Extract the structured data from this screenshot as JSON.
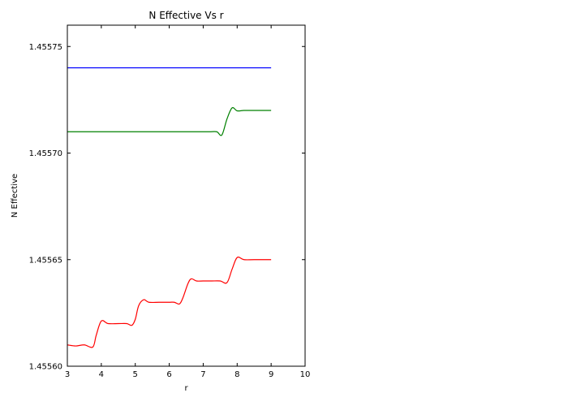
{
  "chart_data": {
    "type": "line",
    "title": "N Effective Vs r",
    "xlabel": "r",
    "ylabel": "N Effective",
    "xlim": [
      3,
      10
    ],
    "ylim": [
      1.4556,
      1.45576
    ],
    "xticks": [
      3,
      4,
      5,
      6,
      7,
      8,
      9,
      10
    ],
    "xtick_labels": [
      "3",
      "4",
      "5",
      "6",
      "7",
      "8",
      "9",
      "10"
    ],
    "yticks": [
      1.4556,
      1.45565,
      1.4557,
      1.45575
    ],
    "ytick_labels": [
      "1.45560",
      "1.45565",
      "1.45570",
      "1.45575"
    ],
    "grid": false,
    "series": [
      {
        "color": "#0000ff",
        "x": [
          3.0,
          9.0
        ],
        "y": [
          1.45574,
          1.45574
        ]
      },
      {
        "color": "#008000",
        "x": [
          3.0,
          4.0,
          5.0,
          6.0,
          7.0,
          7.2,
          7.4,
          7.55,
          7.7,
          7.85,
          8.0,
          8.2,
          8.5,
          9.0
        ],
        "y": [
          1.45571,
          1.45571,
          1.45571,
          1.45571,
          1.45571,
          1.45571,
          1.45571,
          1.4557085,
          1.455716,
          1.4557212,
          1.4557198,
          1.45572,
          1.45572,
          1.45572
        ]
      },
      {
        "color": "#ff0000",
        "x": [
          3.0,
          3.25,
          3.5,
          3.75,
          3.85,
          4.0,
          4.2,
          4.5,
          4.75,
          4.9,
          5.0,
          5.1,
          5.25,
          5.4,
          5.7,
          6.0,
          6.15,
          6.3,
          6.4,
          6.55,
          6.65,
          6.8,
          7.0,
          7.25,
          7.5,
          7.7,
          7.85,
          8.0,
          8.2,
          8.5,
          9.0
        ],
        "y": [
          1.45561,
          1.4556095,
          1.45561,
          1.455609,
          1.4556145,
          1.4556212,
          1.45562,
          1.45562,
          1.45562,
          1.4556192,
          1.455622,
          1.4556284,
          1.4556312,
          1.45563,
          1.45563,
          1.45563,
          1.45563,
          1.4556292,
          1.455632,
          1.4556387,
          1.455641,
          1.45564,
          1.45564,
          1.45564,
          1.45564,
          1.4556392,
          1.4556455,
          1.455651,
          1.45565,
          1.45565,
          1.45565
        ]
      }
    ]
  }
}
